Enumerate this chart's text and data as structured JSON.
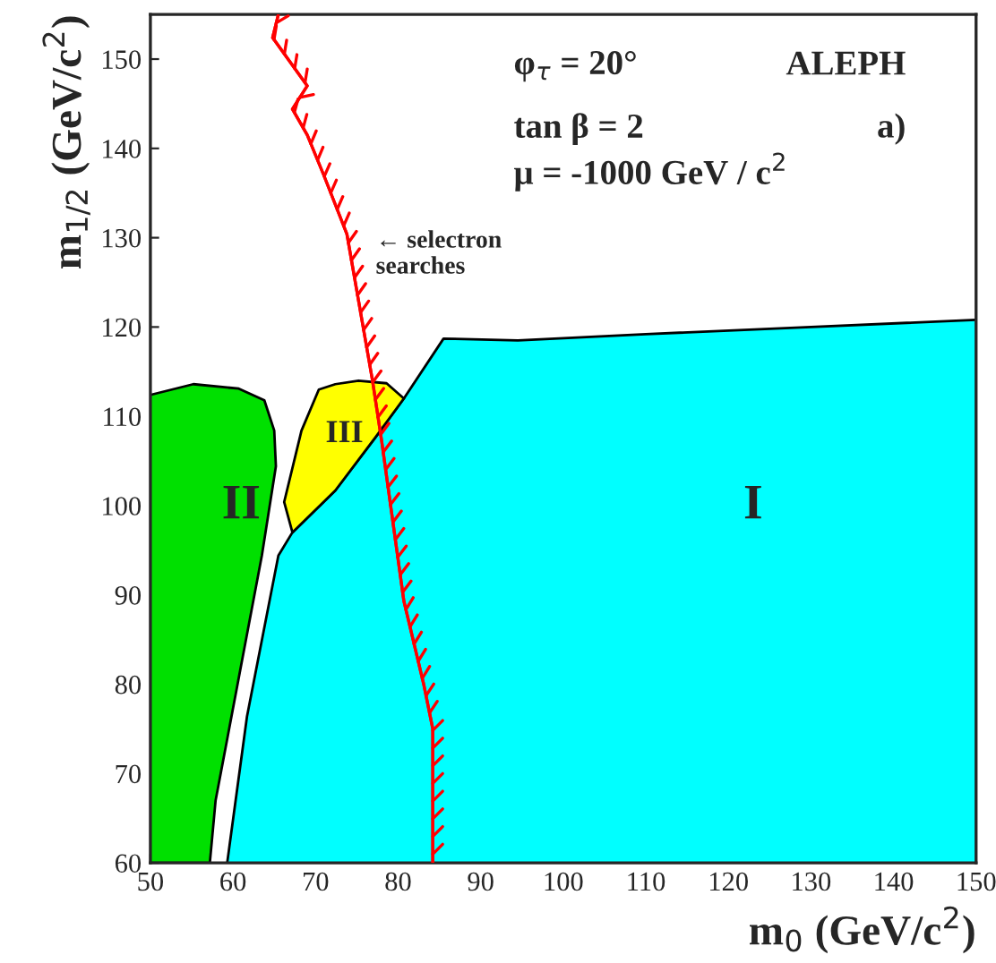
{
  "chart_data": {
    "type": "area",
    "xlabel": "m$_{0}$ (GeV/c$^{2}$)",
    "ylabel": "m$_{1/2}$ (GeV/c$^{2}$)",
    "series": [
      {
        "name": "I",
        "color": "#00ffff",
        "x": [
          59.3,
          61.7,
          65.5,
          67.2,
          72.4,
          77.3,
          80.7,
          85.5,
          94.5,
          110,
          130,
          150
        ],
        "values": [
          60,
          76.4,
          94.4,
          97,
          101.7,
          107.7,
          112,
          118.7,
          118.5,
          119.2,
          120,
          120.8
        ]
      },
      {
        "type": "area",
        "name": "II",
        "color": "#00e000",
        "x": [
          50,
          55.2,
          60.7,
          63.8,
          65,
          65.2,
          63.5,
          60.7,
          57.9,
          57.2,
          50
        ],
        "values": [
          112.4,
          113.6,
          113.1,
          111.8,
          108.4,
          104.4,
          94.4,
          80.7,
          67,
          60,
          60
        ]
      },
      {
        "type": "area",
        "name": "III",
        "color": "#ffff00",
        "x": [
          66.2,
          68.3,
          70.4,
          72.4,
          75.2,
          78.6,
          80.7,
          77.3,
          72.4,
          67.2,
          66.2
        ],
        "values": [
          100.4,
          108.4,
          113,
          113.6,
          114,
          113.7,
          112,
          107.7,
          101.7,
          97,
          100.4
        ]
      },
      {
        "type": "line",
        "color": "#ff0000",
        "x": [
          84.2,
          84.2,
          83.1,
          80.7,
          78,
          76.9,
          73.8,
          71,
          69,
          67.2,
          69,
          66.9,
          64.8,
          65.5
        ],
        "values": [
          60,
          75,
          80,
          89.3,
          107.3,
          114,
          130.4,
          137,
          141.5,
          144.4,
          147,
          149.7,
          152.4,
          155
        ]
      }
    ],
    "xlim": [
      50,
      150
    ],
    "ylim": [
      60,
      155
    ],
    "xticks": [
      50,
      60,
      70,
      80,
      90,
      100,
      110,
      120,
      130,
      140,
      150
    ],
    "yticks": [
      60,
      70,
      80,
      90,
      100,
      110,
      120,
      130,
      140,
      150
    ],
    "grid": false,
    "legend": false,
    "annotations": [
      "φ$_{τ}$ = 20°",
      "ALEPH",
      "tan β = 2",
      "μ = -1000 GeV / c$^{2}$",
      "a)",
      "← selectron\nsearches"
    ]
  }
}
